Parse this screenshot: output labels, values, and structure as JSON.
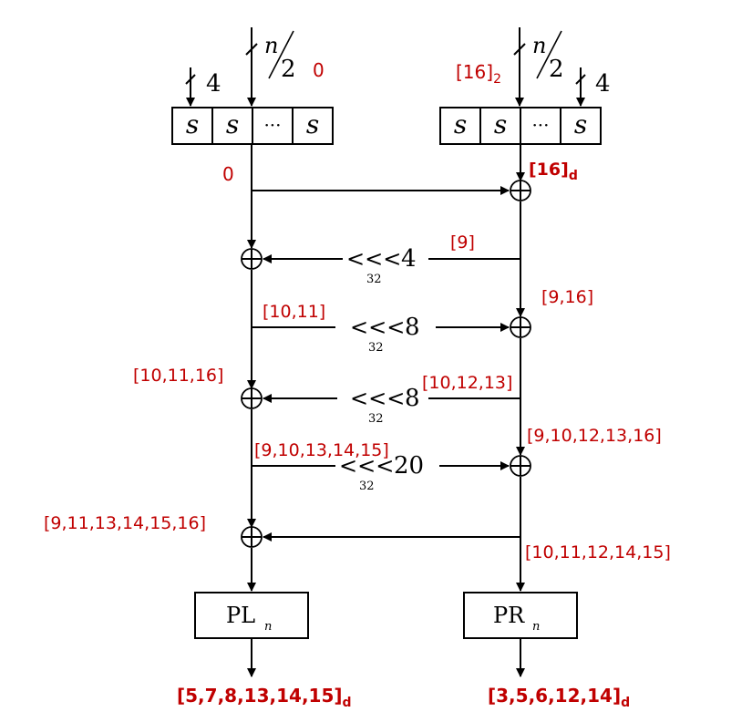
{
  "sbox": {
    "letter": "s",
    "dots": "···"
  },
  "input_width": {
    "numer": "n",
    "denom": "2"
  },
  "side_width": "4",
  "rotations": [
    {
      "op": "<<<",
      "amount": "4",
      "mod": "32"
    },
    {
      "op": "<<<",
      "amount": "8",
      "mod": "32"
    },
    {
      "op": "<<<",
      "amount": "8",
      "mod": "32"
    },
    {
      "op": "<<<",
      "amount": "20",
      "mod": "32"
    }
  ],
  "outputs": {
    "left": {
      "base": "PL",
      "sub": "n"
    },
    "right": {
      "base": "PR",
      "sub": "n"
    }
  },
  "annotations": {
    "left_in": "0",
    "right_in_main": "[16]",
    "right_in_sub": "2",
    "left_after_sbox": "0",
    "right_after_sbox_main": "[16]",
    "right_after_sbox_sub": "d",
    "a1": "[9]",
    "a2": "[9,16]",
    "a3": "[10,11]",
    "a4": "[10,11,16]",
    "a5": "[10,12,13]",
    "a6": "[9,10,12,13,16]",
    "a7": "[9,10,13,14,15]",
    "a8": "[9,11,13,14,15,16]",
    "a9": "[10,11,12,14,15]",
    "out_left_main": "[5,7,8,13,14,15]",
    "out_left_sub": "d",
    "out_right_main": "[3,5,6,12,14]",
    "out_right_sub": "d"
  }
}
